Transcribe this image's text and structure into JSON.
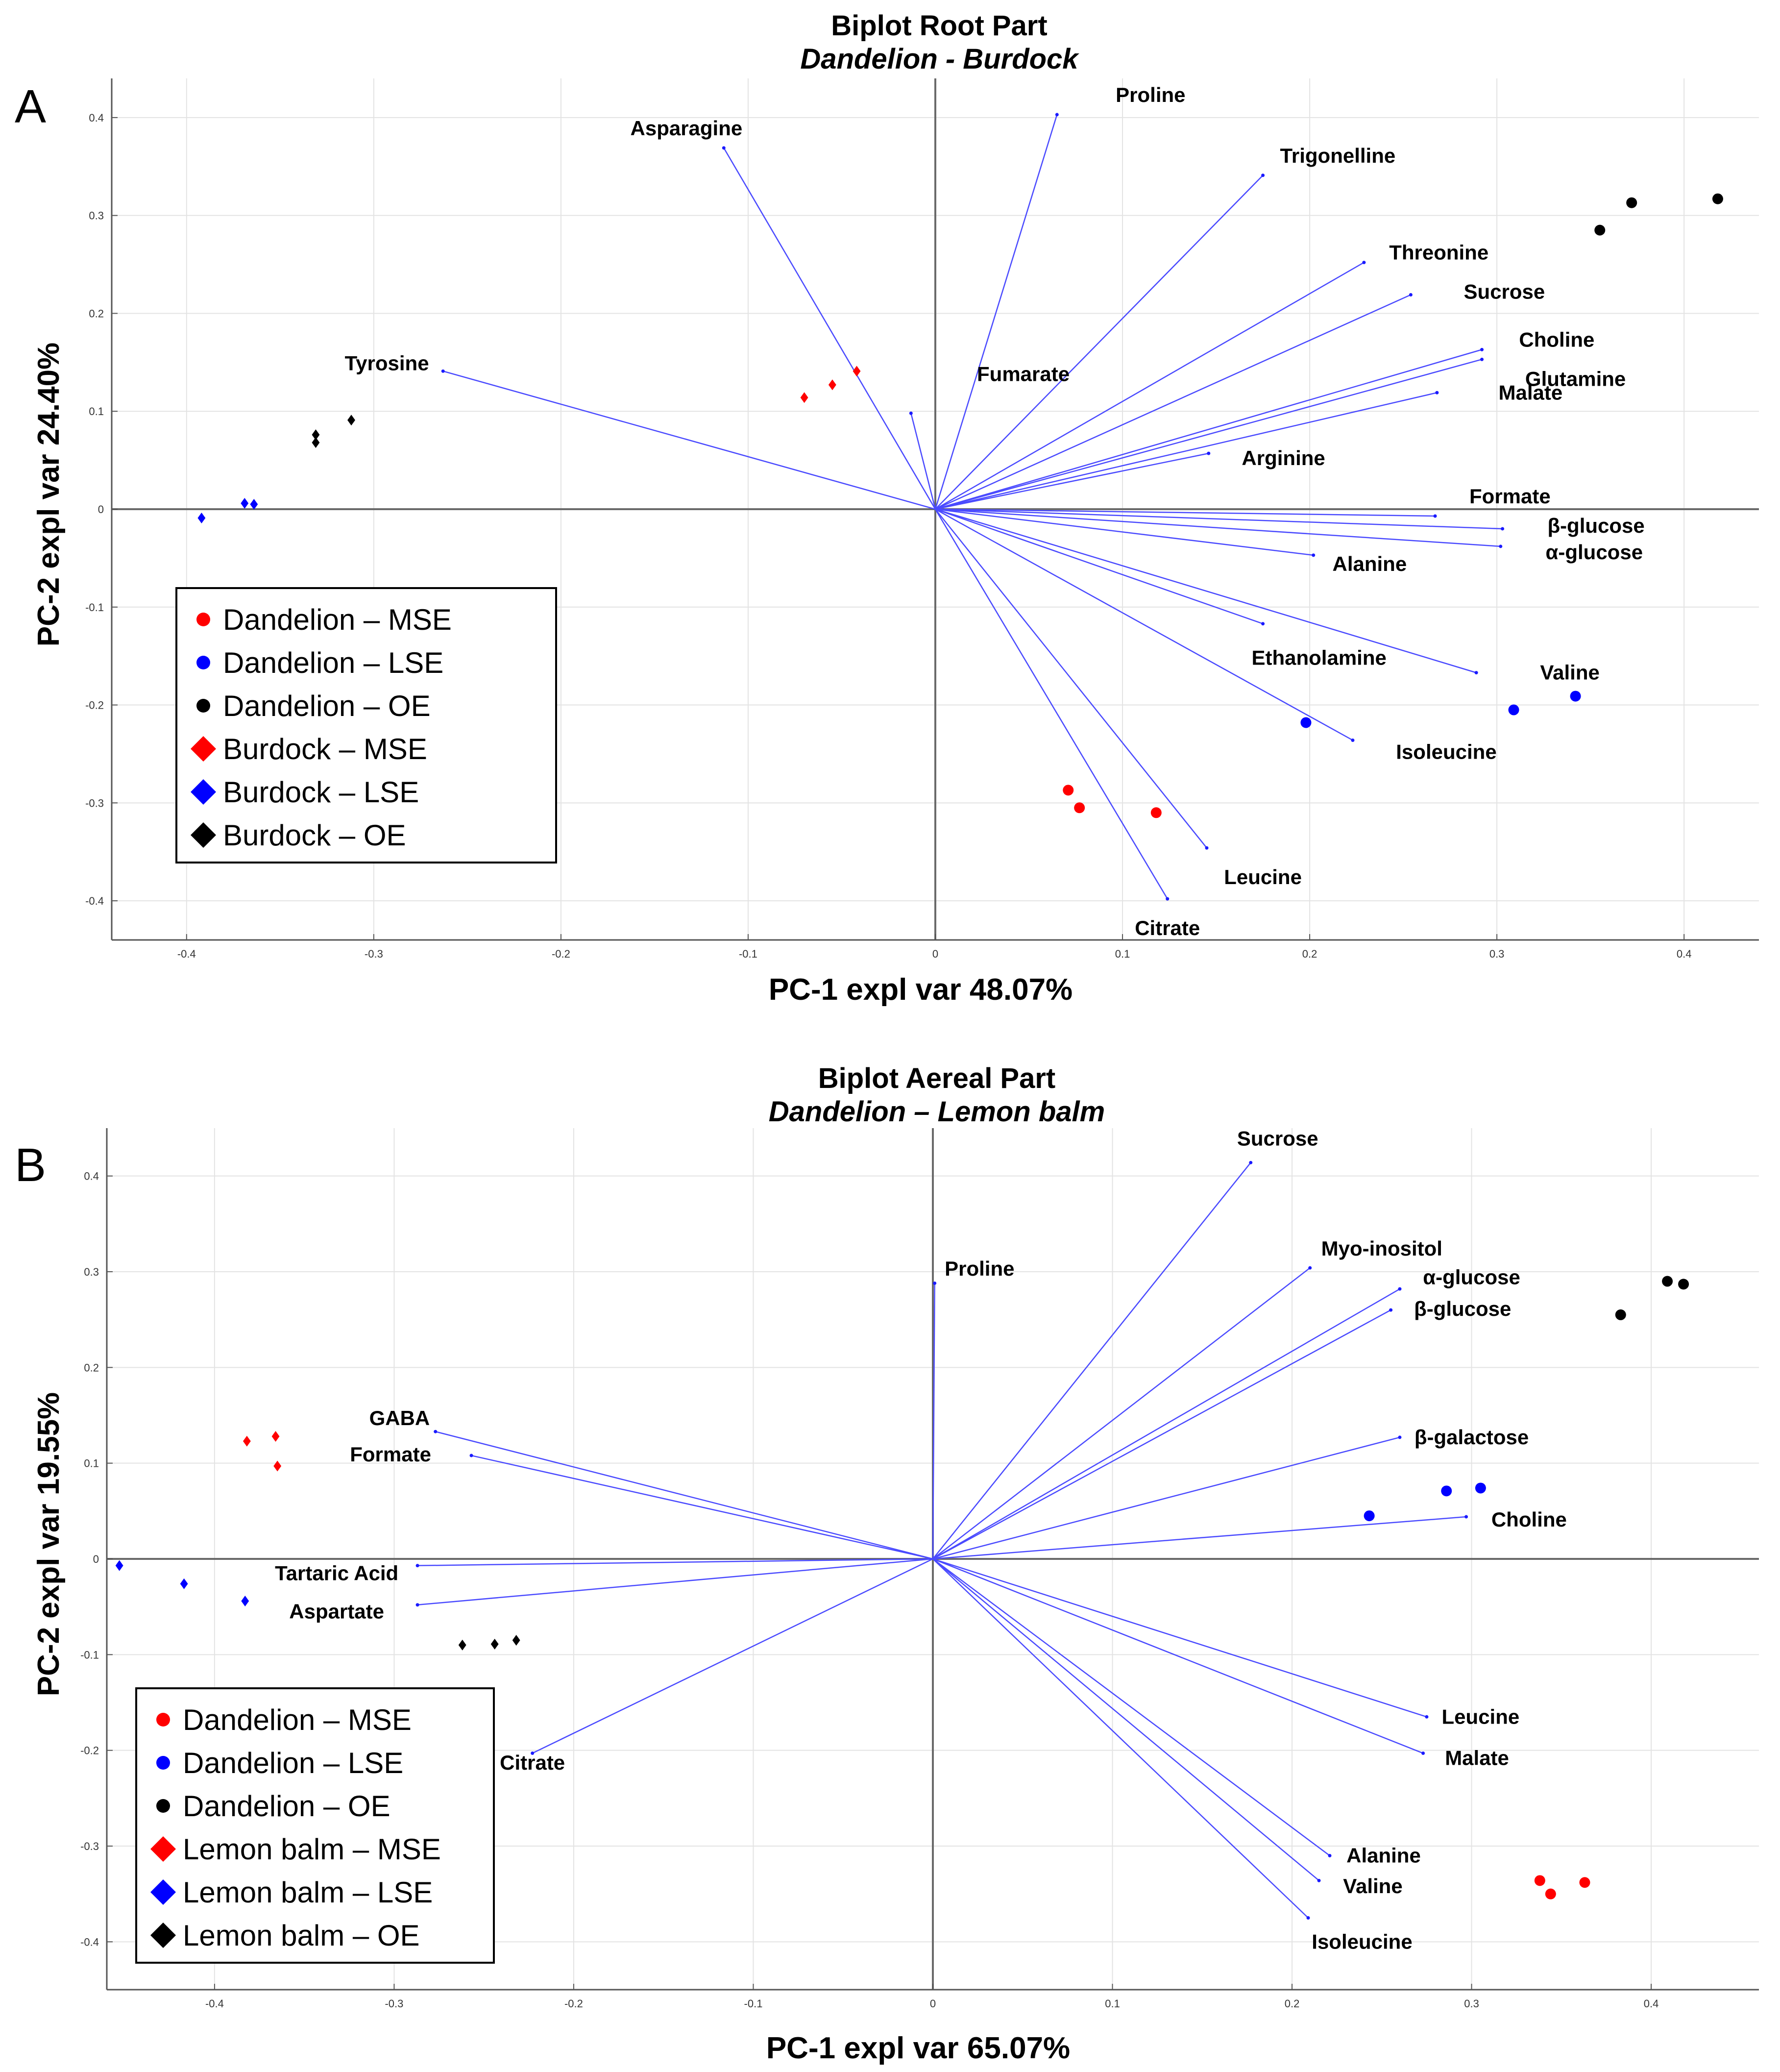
{
  "chart_data": [
    {
      "type": "scatter",
      "panel_label": "A",
      "title": "Biplot Root Part",
      "subtitle": "Dandelion - Burdock",
      "xlabel": "PC-1 expl var 48.07%",
      "ylabel": "PC-2 expl var 24.40%",
      "xlim": [
        -0.44,
        0.44
      ],
      "ylim": [
        -0.44,
        0.44
      ],
      "xticks": [
        -0.4,
        -0.3,
        -0.2,
        -0.1,
        0,
        0.1,
        0.2,
        0.3,
        0.4
      ],
      "yticks": [
        0.4,
        0.3,
        0.2,
        0.1,
        0,
        -0.1,
        -0.2,
        -0.3,
        -0.4
      ],
      "grid": true,
      "legend_position": "lower-left",
      "legend": [
        {
          "label": "Dandelion – MSE",
          "color": "#ff0000",
          "marker": "circle"
        },
        {
          "label": "Dandelion – LSE",
          "color": "#0000ff",
          "marker": "circle"
        },
        {
          "label": "Dandelion – OE",
          "color": "#000000",
          "marker": "circle"
        },
        {
          "label": "Burdock – MSE",
          "color": "#ff0000",
          "marker": "diamond"
        },
        {
          "label": "Burdock – LSE",
          "color": "#0000ff",
          "marker": "diamond"
        },
        {
          "label": "Burdock – OE",
          "color": "#000000",
          "marker": "diamond"
        }
      ],
      "loadings": [
        {
          "name": "Proline",
          "x": 0.065,
          "y": 0.403,
          "ldx": 0.05,
          "ldy": 0.02
        },
        {
          "name": "Asparagine",
          "x": -0.113,
          "y": 0.369,
          "ldx": -0.02,
          "ldy": 0.02
        },
        {
          "name": "Trigonelline",
          "x": 0.175,
          "y": 0.341,
          "ldx": 0.04,
          "ldy": 0.02
        },
        {
          "name": "Threonine",
          "x": 0.229,
          "y": 0.252,
          "ldx": 0.04,
          "ldy": 0.01
        },
        {
          "name": "Sucrose",
          "x": 0.254,
          "y": 0.219,
          "ldx": 0.05,
          "ldy": 0.003
        },
        {
          "name": "Choline",
          "x": 0.292,
          "y": 0.163,
          "ldx": 0.04,
          "ldy": 0.01
        },
        {
          "name": "Glutamine",
          "x": 0.292,
          "y": 0.153,
          "ldx": 0.05,
          "ldy": -0.02
        },
        {
          "name": "Malate",
          "x": 0.268,
          "y": 0.119,
          "ldx": 0.05,
          "ldy": 0.0
        },
        {
          "name": "Arginine",
          "x": 0.146,
          "y": 0.057,
          "ldx": 0.04,
          "ldy": -0.005
        },
        {
          "name": "Fumarate",
          "x": -0.013,
          "y": 0.098,
          "ldx": 0.06,
          "ldy": 0.04
        },
        {
          "name": "Tyrosine",
          "x": -0.263,
          "y": 0.141,
          "ldx": -0.03,
          "ldy": 0.008
        },
        {
          "name": "Formate",
          "x": 0.267,
          "y": -0.007,
          "ldx": 0.04,
          "ldy": 0.02
        },
        {
          "name": "β-glucose",
          "x": 0.303,
          "y": -0.02,
          "ldx": 0.05,
          "ldy": 0.003
        },
        {
          "name": "α-glucose",
          "x": 0.302,
          "y": -0.038,
          "ldx": 0.05,
          "ldy": -0.006
        },
        {
          "name": "Alanine",
          "x": 0.202,
          "y": -0.047,
          "ldx": 0.03,
          "ldy": -0.009
        },
        {
          "name": "Ethanolamine",
          "x": 0.175,
          "y": -0.117,
          "ldx": 0.03,
          "ldy": -0.035
        },
        {
          "name": "Valine",
          "x": 0.289,
          "y": -0.167,
          "ldx": 0.05,
          "ldy": 0.0
        },
        {
          "name": "Isoleucine",
          "x": 0.223,
          "y": -0.236,
          "ldx": 0.05,
          "ldy": -0.012
        },
        {
          "name": "Leucine",
          "x": 0.145,
          "y": -0.346,
          "ldx": 0.03,
          "ldy": -0.03
        },
        {
          "name": "Citrate",
          "x": 0.124,
          "y": -0.398,
          "ldx": 0.0,
          "ldy": -0.03
        }
      ],
      "scores": [
        {
          "group": "Dandelion – MSE",
          "points": [
            [
              0.071,
              -0.287
            ],
            [
              0.077,
              -0.305
            ],
            [
              0.118,
              -0.31
            ]
          ]
        },
        {
          "group": "Dandelion – LSE",
          "points": [
            [
              0.198,
              -0.218
            ],
            [
              0.309,
              -0.205
            ],
            [
              0.342,
              -0.191
            ]
          ]
        },
        {
          "group": "Dandelion – OE",
          "points": [
            [
              0.355,
              0.285
            ],
            [
              0.372,
              0.313
            ],
            [
              0.418,
              0.317
            ]
          ]
        },
        {
          "group": "Burdock – MSE",
          "points": [
            [
              -0.07,
              0.114
            ],
            [
              -0.055,
              0.127
            ],
            [
              -0.042,
              0.141
            ]
          ]
        },
        {
          "group": "Burdock – LSE",
          "points": [
            [
              -0.392,
              -0.009
            ],
            [
              -0.369,
              0.006
            ],
            [
              -0.364,
              0.005
            ]
          ]
        },
        {
          "group": "Burdock – OE",
          "points": [
            [
              -0.331,
              0.068
            ],
            [
              -0.331,
              0.076
            ],
            [
              -0.312,
              0.091
            ]
          ]
        }
      ]
    },
    {
      "type": "scatter",
      "panel_label": "B",
      "title": "Biplot Aereal Part",
      "subtitle": "Dandelion – Lemon balm",
      "xlabel": "PC-1 expl var 65.07%",
      "ylabel": "PC-2 expl var 19.55%",
      "xlim": [
        -0.46,
        0.46
      ],
      "ylim": [
        -0.45,
        0.45
      ],
      "xticks": [
        -0.4,
        -0.3,
        -0.2,
        -0.1,
        0,
        0.1,
        0.2,
        0.3,
        0.4
      ],
      "yticks": [
        0.4,
        0.3,
        0.2,
        0.1,
        0,
        -0.1,
        -0.2,
        -0.3,
        -0.4
      ],
      "grid": true,
      "legend_position": "lower-left",
      "legend": [
        {
          "label": "Dandelion – MSE",
          "color": "#ff0000",
          "marker": "circle"
        },
        {
          "label": "Dandelion – LSE",
          "color": "#0000ff",
          "marker": "circle"
        },
        {
          "label": "Dandelion – OE",
          "color": "#000000",
          "marker": "circle"
        },
        {
          "label": "Lemon balm – MSE",
          "color": "#ff0000",
          "marker": "diamond"
        },
        {
          "label": "Lemon balm – LSE",
          "color": "#0000ff",
          "marker": "diamond"
        },
        {
          "label": "Lemon balm – OE",
          "color": "#000000",
          "marker": "diamond"
        }
      ],
      "loadings": [
        {
          "name": "Sucrose",
          "x": 0.177,
          "y": 0.414,
          "ldx": 0.015,
          "ldy": 0.025
        },
        {
          "name": "Proline",
          "x": 0.001,
          "y": 0.288,
          "ldx": 0.025,
          "ldy": 0.015
        },
        {
          "name": "Myo-inositol",
          "x": 0.21,
          "y": 0.304,
          "ldx": 0.04,
          "ldy": 0.02
        },
        {
          "name": "α-glucose",
          "x": 0.26,
          "y": 0.282,
          "ldx": 0.04,
          "ldy": 0.012
        },
        {
          "name": "β-glucose",
          "x": 0.255,
          "y": 0.26,
          "ldx": 0.04,
          "ldy": 0.001
        },
        {
          "name": "β-galactose",
          "x": 0.26,
          "y": 0.127,
          "ldx": 0.04,
          "ldy": 0.0
        },
        {
          "name": "Choline",
          "x": 0.297,
          "y": 0.044,
          "ldx": 0.035,
          "ldy": -0.003
        },
        {
          "name": "GABA",
          "x": -0.277,
          "y": 0.133,
          "ldx": -0.02,
          "ldy": 0.014
        },
        {
          "name": "Formate",
          "x": -0.257,
          "y": 0.108,
          "ldx": -0.045,
          "ldy": 0.001
        },
        {
          "name": "Tartaric Acid",
          "x": -0.287,
          "y": -0.007,
          "ldx": -0.045,
          "ldy": -0.008
        },
        {
          "name": "Aspartate",
          "x": -0.287,
          "y": -0.048,
          "ldx": -0.045,
          "ldy": -0.007
        },
        {
          "name": "Citrate",
          "x": -0.223,
          "y": -0.203,
          "ldx": -0.0,
          "ldy": -0.01
        },
        {
          "name": "Leucine",
          "x": 0.275,
          "y": -0.165,
          "ldx": 0.03,
          "ldy": 0.0
        },
        {
          "name": "Malate",
          "x": 0.273,
          "y": -0.203,
          "ldx": 0.03,
          "ldy": -0.005
        },
        {
          "name": "Alanine",
          "x": 0.221,
          "y": -0.31,
          "ldx": 0.03,
          "ldy": 0.0
        },
        {
          "name": "Valine",
          "x": 0.215,
          "y": -0.336,
          "ldx": 0.03,
          "ldy": -0.006
        },
        {
          "name": "Isoleucine",
          "x": 0.209,
          "y": -0.375,
          "ldx": 0.03,
          "ldy": -0.025
        }
      ],
      "scores": [
        {
          "group": "Dandelion – MSE",
          "points": [
            [
              0.338,
              -0.336
            ],
            [
              0.344,
              -0.35
            ],
            [
              0.363,
              -0.338
            ]
          ]
        },
        {
          "group": "Dandelion – LSE",
          "points": [
            [
              0.243,
              0.045
            ],
            [
              0.286,
              0.071
            ],
            [
              0.305,
              0.074
            ]
          ]
        },
        {
          "group": "Dandelion – OE",
          "points": [
            [
              0.383,
              0.255
            ],
            [
              0.409,
              0.29
            ],
            [
              0.418,
              0.287
            ]
          ]
        },
        {
          "group": "Lemon balm – MSE",
          "points": [
            [
              -0.382,
              0.123
            ],
            [
              -0.366,
              0.128
            ],
            [
              -0.365,
              0.097
            ]
          ]
        },
        {
          "group": "Lemon balm – LSE",
          "points": [
            [
              -0.453,
              -0.007
            ],
            [
              -0.417,
              -0.026
            ],
            [
              -0.383,
              -0.044
            ]
          ]
        },
        {
          "group": "Lemon balm – OE",
          "points": [
            [
              -0.262,
              -0.09
            ],
            [
              -0.244,
              -0.089
            ],
            [
              -0.232,
              -0.085
            ]
          ]
        }
      ]
    }
  ]
}
